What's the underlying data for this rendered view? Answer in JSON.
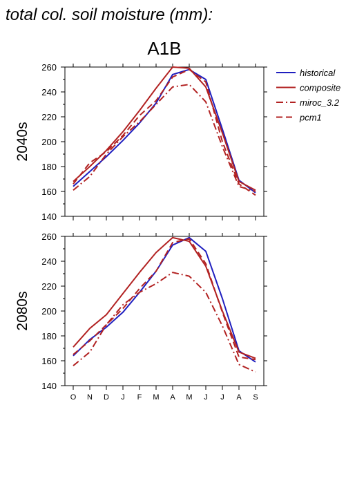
{
  "figure": {
    "title": "total col. soil moisture (mm):",
    "scenario": "A1B"
  },
  "colors": {
    "historical": "#1f1fbf",
    "composite": "#b22222",
    "miroc_3.2": "#b22222",
    "pcm1": "#b22222"
  },
  "legend": [
    {
      "name": "historical",
      "style": "solid",
      "color": "#1f1fbf"
    },
    {
      "name": "composite",
      "style": "solid",
      "color": "#b22222"
    },
    {
      "name": "miroc_3.2",
      "style": "dashdot",
      "color": "#b22222"
    },
    {
      "name": "pcm1",
      "style": "dashed",
      "color": "#b22222"
    }
  ],
  "chart_data": [
    {
      "type": "line",
      "period_label": "2040s",
      "categories": [
        "O",
        "N",
        "D",
        "J",
        "F",
        "M",
        "A",
        "M",
        "J",
        "J",
        "A",
        "S"
      ],
      "ylim": [
        140,
        260
      ],
      "yticks": [
        140,
        160,
        180,
        200,
        220,
        240,
        260
      ],
      "series": [
        {
          "name": "historical",
          "style": "solid",
          "color": "#1f1fbf",
          "values": [
            164,
            176,
            188,
            201,
            215,
            231,
            254,
            258,
            250,
            210,
            169,
            159
          ]
        },
        {
          "name": "composite",
          "style": "solid",
          "color": "#b22222",
          "values": [
            168,
            180,
            193,
            208,
            225,
            243,
            260,
            259,
            244,
            207,
            168,
            161
          ]
        },
        {
          "name": "miroc_3.2",
          "style": "dashdot",
          "color": "#b22222",
          "values": [
            161,
            172,
            190,
            204,
            216,
            230,
            244,
            246,
            232,
            196,
            164,
            160
          ]
        },
        {
          "name": "pcm1",
          "style": "dashed",
          "color": "#b22222",
          "values": [
            166,
            183,
            192,
            205,
            221,
            233,
            252,
            258,
            248,
            200,
            166,
            157
          ]
        }
      ]
    },
    {
      "type": "line",
      "period_label": "2080s",
      "categories": [
        "O",
        "N",
        "D",
        "J",
        "F",
        "M",
        "A",
        "M",
        "J",
        "J",
        "A",
        "S"
      ],
      "ylim": [
        140,
        260
      ],
      "yticks": [
        140,
        160,
        180,
        200,
        220,
        240,
        260
      ],
      "series": [
        {
          "name": "historical",
          "style": "solid",
          "color": "#1f1fbf",
          "values": [
            164,
            177,
            187,
            199,
            215,
            232,
            253,
            259,
            248,
            210,
            168,
            159
          ]
        },
        {
          "name": "composite",
          "style": "solid",
          "color": "#b22222",
          "values": [
            171,
            186,
            197,
            214,
            231,
            247,
            259,
            256,
            236,
            200,
            167,
            162
          ]
        },
        {
          "name": "miroc_3.2",
          "style": "dashdot",
          "color": "#b22222",
          "values": [
            156,
            167,
            189,
            205,
            215,
            222,
            231,
            228,
            215,
            188,
            157,
            151
          ]
        },
        {
          "name": "pcm1",
          "style": "dashed",
          "color": "#b22222",
          "values": [
            165,
            176,
            189,
            202,
            218,
            232,
            255,
            258,
            238,
            199,
            163,
            161
          ]
        }
      ]
    }
  ]
}
